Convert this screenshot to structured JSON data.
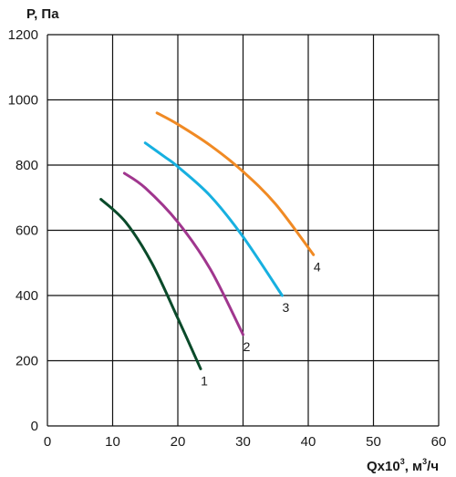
{
  "chart_data": {
    "type": "line",
    "ylabel": "P, Па",
    "xlabel": {
      "prefix": "Qx10",
      "sup": "3",
      "mid": ", м",
      "sup2": "3",
      "suffix": "/ч"
    },
    "xlim": [
      0,
      60
    ],
    "ylim": [
      0,
      1200
    ],
    "xticks": [
      0,
      10,
      20,
      30,
      40,
      50,
      60
    ],
    "yticks": [
      0,
      200,
      400,
      600,
      800,
      1000,
      1200
    ],
    "grid": true,
    "series": [
      {
        "name": "1",
        "color": "#0a4a2a",
        "x": [
          8.2,
          12,
          16,
          20,
          23.5
        ],
        "y": [
          695,
          625,
          500,
          330,
          175
        ]
      },
      {
        "name": "2",
        "color": "#a0368e",
        "x": [
          11.8,
          15,
          20,
          25,
          30
        ],
        "y": [
          775,
          730,
          625,
          480,
          280
        ]
      },
      {
        "name": "3",
        "color": "#17b0e0",
        "x": [
          15,
          18,
          20,
          25,
          30,
          36
        ],
        "y": [
          868,
          825,
          795,
          705,
          580,
          400
        ]
      },
      {
        "name": "4",
        "color": "#f08a24",
        "x": [
          16.8,
          20,
          25,
          30,
          35,
          40.8
        ],
        "y": [
          960,
          925,
          860,
          780,
          680,
          525
        ]
      }
    ]
  }
}
